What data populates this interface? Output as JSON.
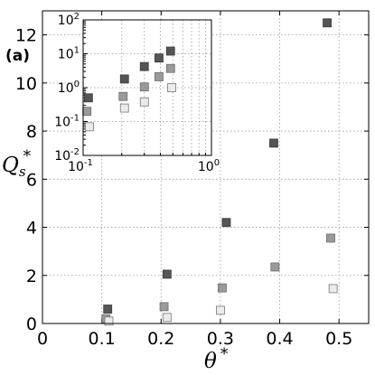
{
  "panel_label": "(a)",
  "chart_data": [
    {
      "id": "main",
      "type": "scatter",
      "xlabel": {
        "base": "θ",
        "sup": "*"
      },
      "ylabel": {
        "base": "Q",
        "sub": "s",
        "sup": "*"
      },
      "xlim": [
        0,
        0.55
      ],
      "ylim": [
        0,
        13
      ],
      "xticks": [
        0,
        0.1,
        0.2,
        0.3,
        0.4,
        0.5
      ],
      "xtick_labels": [
        "0",
        "0.1",
        "0.2",
        "0.3",
        "0.4",
        "0.5"
      ],
      "yticks": [
        0,
        2,
        4,
        6,
        8,
        10,
        12
      ],
      "ytick_labels": [
        "0",
        "2",
        "4",
        "6",
        "8",
        "10",
        "12"
      ],
      "grid": true,
      "grid_style": "dotted",
      "series": [
        {
          "color": "#555555",
          "edge": "#3a3a3a",
          "points": [
            [
              0.11,
              0.6
            ],
            [
              0.21,
              2.05
            ],
            [
              0.31,
              4.2
            ],
            [
              0.39,
              7.5
            ],
            [
              0.48,
              12.5
            ]
          ]
        },
        {
          "color": "#9a9a9a",
          "edge": "#6a6a6a",
          "points": [
            [
              0.107,
              0.2
            ],
            [
              0.205,
              0.7
            ],
            [
              0.303,
              1.48
            ],
            [
              0.392,
              2.35
            ],
            [
              0.486,
              3.55
            ]
          ]
        },
        {
          "color": "#ebebeb",
          "edge": "#777777",
          "points": [
            [
              0.112,
              0.1
            ],
            [
              0.21,
              0.25
            ],
            [
              0.3,
              0.55
            ],
            [
              0.49,
              1.45
            ]
          ]
        }
      ]
    },
    {
      "id": "inset",
      "type": "scatter",
      "xscale": "log",
      "yscale": "log",
      "xlim": [
        0.1,
        1
      ],
      "ylim": [
        0.01,
        100
      ],
      "xtick_labels": [
        {
          "base": "10",
          "exp": "-1"
        },
        {
          "base": "10",
          "exp": "0"
        }
      ],
      "ytick_labels": [
        {
          "base": "10",
          "exp": "-2"
        },
        {
          "base": "10",
          "exp": "-1"
        },
        {
          "base": "10",
          "exp": "0"
        },
        {
          "base": "10",
          "exp": "1"
        },
        {
          "base": "10",
          "exp": "2"
        }
      ],
      "grid": true,
      "grid_style": "dotted",
      "series": [
        {
          "color": "#555555",
          "edge": "#3a3a3a",
          "points": [
            [
              0.11,
              0.5
            ],
            [
              0.21,
              1.8
            ],
            [
              0.3,
              4.2
            ],
            [
              0.39,
              7.5
            ],
            [
              0.48,
              12.0
            ]
          ]
        },
        {
          "color": "#9a9a9a",
          "edge": "#6a6a6a",
          "points": [
            [
              0.107,
              0.2
            ],
            [
              0.205,
              0.55
            ],
            [
              0.3,
              1.05
            ],
            [
              0.39,
              2.1
            ],
            [
              0.48,
              3.7
            ]
          ]
        },
        {
          "color": "#ebebeb",
          "edge": "#777777",
          "points": [
            [
              0.112,
              0.07
            ],
            [
              0.21,
              0.25
            ],
            [
              0.3,
              0.38
            ],
            [
              0.49,
              1.0
            ]
          ]
        }
      ]
    }
  ]
}
